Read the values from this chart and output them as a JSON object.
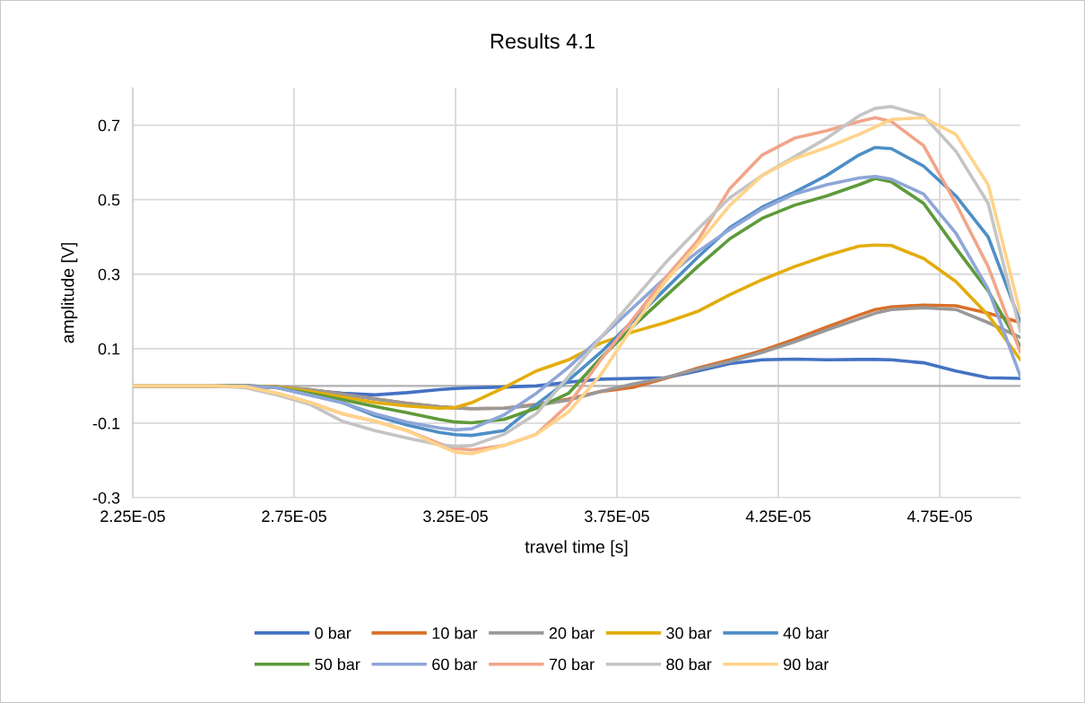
{
  "chart_data": {
    "type": "line",
    "title": "Results 4.1",
    "xlabel": "travel time [s]",
    "ylabel": "amplitude [V]",
    "x": [
      2.25e-05,
      2.5e-05,
      2.6e-05,
      2.7e-05,
      2.8e-05,
      2.9e-05,
      3e-05,
      3.1e-05,
      3.2e-05,
      3.25e-05,
      3.3e-05,
      3.4e-05,
      3.5e-05,
      3.6e-05,
      3.7e-05,
      3.8e-05,
      3.9e-05,
      4e-05,
      4.1e-05,
      4.2e-05,
      4.3e-05,
      4.4e-05,
      4.5e-05,
      4.55e-05,
      4.6e-05,
      4.7e-05,
      4.8e-05,
      4.9e-05,
      5e-05
    ],
    "series": [
      {
        "name": "0 bar",
        "color": "#4472c4",
        "values": [
          0,
          0,
          0,
          -0.003,
          -0.012,
          -0.02,
          -0.024,
          -0.018,
          -0.01,
          -0.007,
          -0.005,
          -0.003,
          0,
          0.01,
          0.018,
          0.02,
          0.022,
          0.04,
          0.06,
          0.07,
          0.072,
          0.07,
          0.071,
          0.071,
          0.07,
          0.062,
          0.04,
          0.022,
          0.02
        ]
      },
      {
        "name": "10 bar",
        "color": "#d9702a",
        "values": [
          0,
          0,
          0,
          -0.003,
          -0.01,
          -0.022,
          -0.035,
          -0.047,
          -0.056,
          -0.059,
          -0.061,
          -0.06,
          -0.05,
          -0.035,
          -0.015,
          -0.004,
          0.02,
          0.048,
          0.07,
          0.095,
          0.125,
          0.158,
          0.19,
          0.205,
          0.212,
          0.217,
          0.215,
          0.195,
          0.17
        ]
      },
      {
        "name": "20 bar",
        "color": "#999999",
        "values": [
          0,
          0,
          0,
          -0.003,
          -0.01,
          -0.022,
          -0.035,
          -0.047,
          -0.056,
          -0.059,
          -0.061,
          -0.06,
          -0.052,
          -0.038,
          -0.015,
          0.005,
          0.022,
          0.045,
          0.065,
          0.09,
          0.118,
          0.15,
          0.18,
          0.195,
          0.205,
          0.21,
          0.205,
          0.17,
          0.13
        ]
      },
      {
        "name": "30 bar",
        "color": "#e3ad0b",
        "values": [
          0,
          0,
          0,
          -0.003,
          -0.015,
          -0.03,
          -0.045,
          -0.054,
          -0.06,
          -0.058,
          -0.045,
          -0.005,
          0.04,
          0.07,
          0.115,
          0.145,
          0.17,
          0.2,
          0.245,
          0.285,
          0.32,
          0.35,
          0.375,
          0.378,
          0.377,
          0.342,
          0.28,
          0.19,
          0.07
        ]
      },
      {
        "name": "40 bar",
        "color": "#4e8ec6",
        "values": [
          0,
          0,
          0,
          -0.005,
          -0.025,
          -0.045,
          -0.08,
          -0.105,
          -0.125,
          -0.131,
          -0.133,
          -0.12,
          -0.05,
          0.015,
          0.09,
          0.175,
          0.26,
          0.345,
          0.425,
          0.48,
          0.52,
          0.565,
          0.62,
          0.64,
          0.637,
          0.59,
          0.51,
          0.4,
          0.17
        ]
      },
      {
        "name": "50 bar",
        "color": "#5e9a3a",
        "values": [
          0,
          0,
          0,
          -0.005,
          -0.02,
          -0.037,
          -0.055,
          -0.072,
          -0.09,
          -0.097,
          -0.099,
          -0.09,
          -0.06,
          -0.02,
          0.075,
          0.16,
          0.24,
          0.32,
          0.395,
          0.45,
          0.485,
          0.51,
          0.54,
          0.557,
          0.548,
          0.49,
          0.37,
          0.255,
          0.105
        ]
      },
      {
        "name": "60 bar",
        "color": "#8fa6d8",
        "values": [
          0,
          0,
          0,
          -0.005,
          -0.025,
          -0.045,
          -0.075,
          -0.097,
          -0.113,
          -0.118,
          -0.115,
          -0.078,
          -0.02,
          0.05,
          0.13,
          0.21,
          0.29,
          0.36,
          0.42,
          0.475,
          0.515,
          0.54,
          0.558,
          0.562,
          0.555,
          0.515,
          0.41,
          0.26,
          0.025
        ]
      },
      {
        "name": "70 bar",
        "color": "#f2a58a",
        "values": [
          0,
          0,
          -0.002,
          -0.02,
          -0.045,
          -0.075,
          -0.095,
          -0.12,
          -0.155,
          -0.168,
          -0.172,
          -0.16,
          -0.13,
          -0.05,
          0.07,
          0.18,
          0.29,
          0.39,
          0.53,
          0.62,
          0.665,
          0.685,
          0.71,
          0.72,
          0.71,
          0.645,
          0.49,
          0.32,
          0.09
        ]
      },
      {
        "name": "80 bar",
        "color": "#c4c4c4",
        "values": [
          0,
          0,
          -0.005,
          -0.025,
          -0.05,
          -0.095,
          -0.12,
          -0.14,
          -0.158,
          -0.162,
          -0.16,
          -0.13,
          -0.075,
          0.025,
          0.13,
          0.23,
          0.33,
          0.42,
          0.505,
          0.565,
          0.615,
          0.665,
          0.725,
          0.745,
          0.75,
          0.725,
          0.63,
          0.49,
          0.146
        ]
      },
      {
        "name": "90 bar",
        "color": "#ffd38a",
        "values": [
          0,
          0,
          -0.002,
          -0.02,
          -0.045,
          -0.075,
          -0.095,
          -0.12,
          -0.16,
          -0.178,
          -0.182,
          -0.16,
          -0.13,
          -0.07,
          0.03,
          0.16,
          0.28,
          0.38,
          0.485,
          0.565,
          0.61,
          0.64,
          0.675,
          0.695,
          0.715,
          0.72,
          0.675,
          0.54,
          0.194
        ]
      }
    ],
    "xlim": [
      2.25e-05,
      5e-05
    ],
    "xticks": [
      {
        "value": 2.25e-05,
        "label": "2.25E-05"
      },
      {
        "value": 2.75e-05,
        "label": "2.75E-05"
      },
      {
        "value": 3.25e-05,
        "label": "3.25E-05"
      },
      {
        "value": 3.75e-05,
        "label": "3.75E-05"
      },
      {
        "value": 4.25e-05,
        "label": "4.25E-05"
      },
      {
        "value": 4.75e-05,
        "label": "4.75E-05"
      }
    ],
    "ylim": [
      -0.3,
      0.8
    ],
    "yticks": [
      -0.3,
      -0.1,
      0.1,
      0.3,
      0.5,
      0.7
    ],
    "ref_lines": [
      {
        "axis": "y",
        "value": 0,
        "color": "#b0b0b0"
      }
    ],
    "grid": true,
    "legend": "bottom",
    "marker": "none",
    "line_style": "solid"
  }
}
